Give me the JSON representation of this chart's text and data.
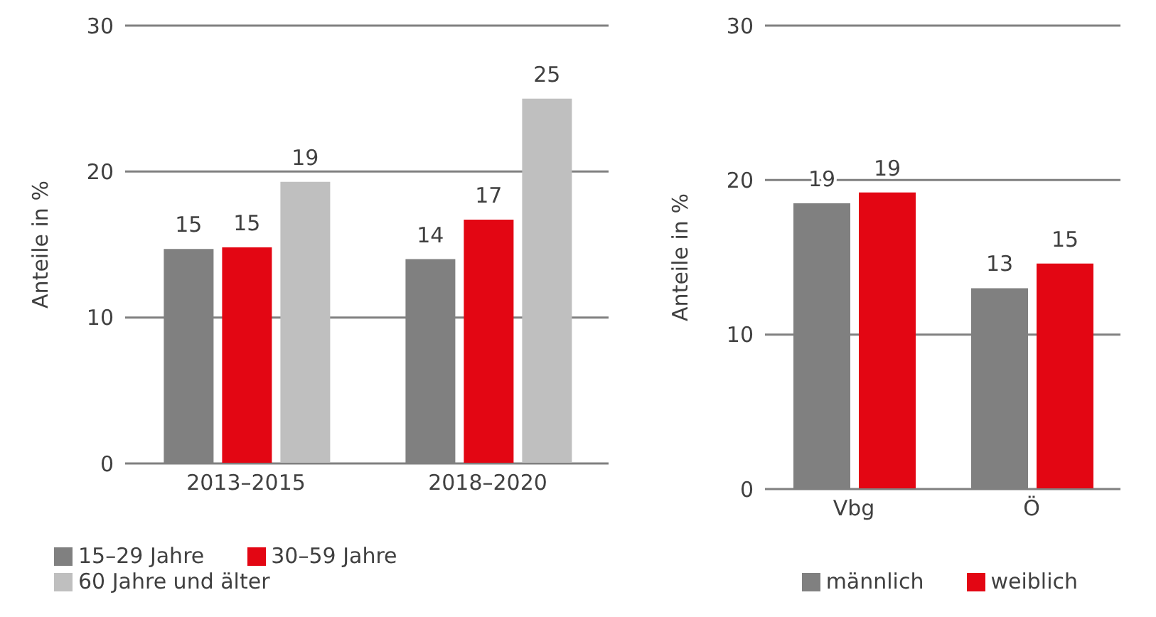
{
  "chart_data": [
    {
      "type": "bar",
      "ylabel": "Anteile in %",
      "categories": [
        "2013–2015",
        "2018–2020"
      ],
      "series": [
        {
          "name": "15–29 Jahre",
          "color": "#808080",
          "values": [
            14.7,
            14.0
          ],
          "value_labels": [
            "15",
            "14"
          ]
        },
        {
          "name": "30–59 Jahre",
          "color": "#e30613",
          "values": [
            14.8,
            16.7
          ],
          "value_labels": [
            "15",
            "17"
          ]
        },
        {
          "name": "60 Jahre und älter",
          "color": "#bfbfbf",
          "values": [
            19.3,
            25.0
          ],
          "value_labels": [
            "19",
            "25"
          ]
        }
      ],
      "ylim": [
        0,
        30
      ],
      "yticks": [
        0,
        10,
        20,
        30
      ],
      "grid": "y",
      "legend": "bottom left"
    },
    {
      "type": "bar",
      "ylabel": "Anteile in %",
      "categories": [
        "Vbg",
        "Ö"
      ],
      "series": [
        {
          "name": "männlich",
          "color": "#808080",
          "values": [
            18.5,
            13.0
          ],
          "value_labels": [
            "19",
            "13"
          ]
        },
        {
          "name": "weiblich",
          "color": "#e30613",
          "values": [
            19.2,
            14.6
          ],
          "value_labels": [
            "19",
            "15"
          ]
        }
      ],
      "ylim": [
        0,
        30
      ],
      "yticks": [
        0,
        10,
        20,
        30
      ],
      "grid": "y",
      "legend": "bottom right"
    }
  ]
}
